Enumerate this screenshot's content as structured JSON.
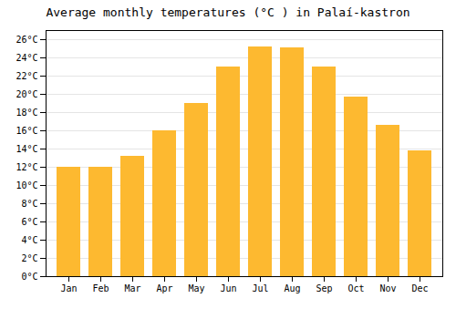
{
  "chart_data": {
    "type": "bar",
    "title": "Average monthly temperatures (°C ) in Palaí-kastron",
    "categories": [
      "Jan",
      "Feb",
      "Mar",
      "Apr",
      "May",
      "Jun",
      "Jul",
      "Aug",
      "Sep",
      "Oct",
      "Nov",
      "Dec"
    ],
    "values": [
      12.0,
      12.0,
      13.2,
      16.0,
      19.0,
      23.0,
      25.2,
      25.1,
      23.0,
      19.7,
      16.6,
      13.8
    ],
    "color": "#FDB930",
    "ylim": [
      0,
      27
    ],
    "yticks": [
      {
        "value": 0,
        "label": "0°C"
      },
      {
        "value": 2,
        "label": "2°C"
      },
      {
        "value": 4,
        "label": "4°C"
      },
      {
        "value": 6,
        "label": "6°C"
      },
      {
        "value": 8,
        "label": "8°C"
      },
      {
        "value": 10,
        "label": "10°C"
      },
      {
        "value": 12,
        "label": "12°C"
      },
      {
        "value": 14,
        "label": "14°C"
      },
      {
        "value": 16,
        "label": "16°C"
      },
      {
        "value": 18,
        "label": "18°C"
      },
      {
        "value": 20,
        "label": "20°C"
      },
      {
        "value": 22,
        "label": "22°C"
      },
      {
        "value": 24,
        "label": "24°C"
      },
      {
        "value": 26,
        "label": "26°C"
      }
    ],
    "grid": true
  }
}
